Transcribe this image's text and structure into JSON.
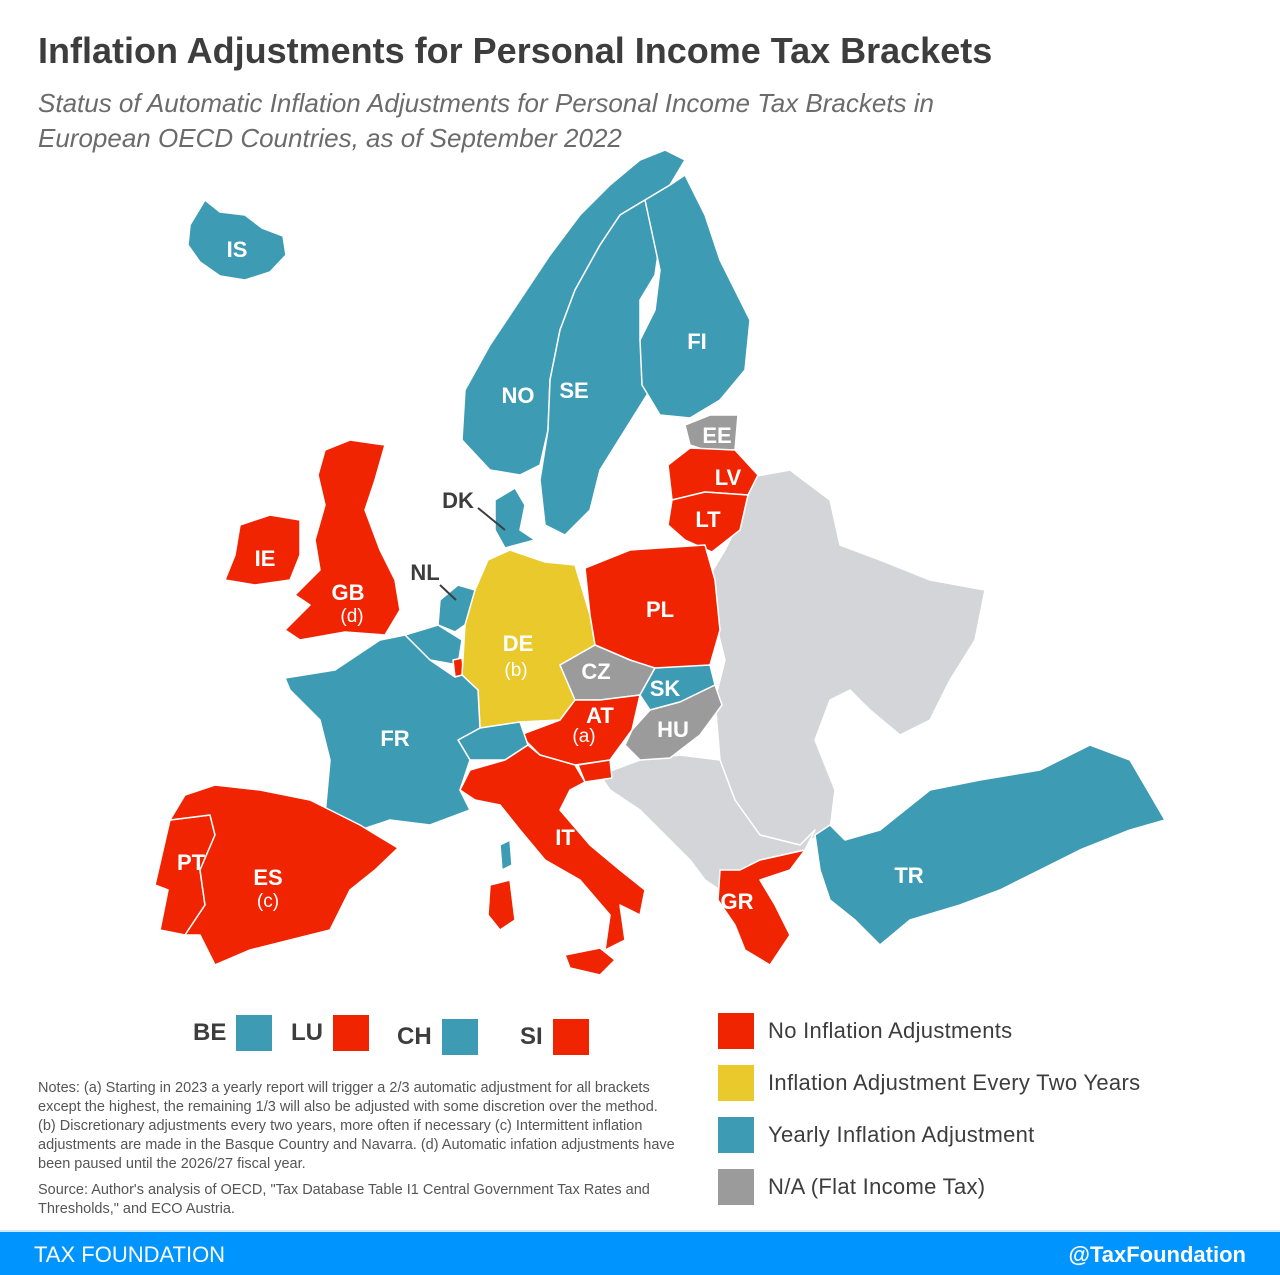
{
  "title": "Inflation Adjustments for Personal Income Tax Brackets",
  "subtitle": "Status of Automatic Inflation Adjustments for Personal Income Tax Brackets in European OECD Countries, as of September 2022",
  "colors": {
    "none": "#f02401",
    "two_years": "#e9c92c",
    "yearly": "#3e9bb4",
    "flat": "#9b9b9b",
    "non_oecd": "#d4d5d8"
  },
  "legend": [
    {
      "key": "none",
      "label": "No Inflation Adjustments"
    },
    {
      "key": "two_years",
      "label": "Inflation Adjustment Every Two Years"
    },
    {
      "key": "yearly",
      "label": "Yearly Inflation Adjustment"
    },
    {
      "key": "flat",
      "label": "N/A (Flat Income Tax)"
    }
  ],
  "countries": {
    "IS": {
      "code": "IS",
      "status": "yearly"
    },
    "NO": {
      "code": "NO",
      "status": "yearly"
    },
    "SE": {
      "code": "SE",
      "status": "yearly"
    },
    "FI": {
      "code": "FI",
      "status": "yearly"
    },
    "EE": {
      "code": "EE",
      "status": "flat"
    },
    "LV": {
      "code": "LV",
      "status": "none"
    },
    "LT": {
      "code": "LT",
      "status": "none"
    },
    "DK": {
      "code": "DK",
      "status": "yearly"
    },
    "GB": {
      "code": "GB",
      "status": "none",
      "note": "(d)"
    },
    "IE": {
      "code": "IE",
      "status": "none"
    },
    "NL": {
      "code": "NL",
      "status": "yearly"
    },
    "DE": {
      "code": "DE",
      "status": "two_years",
      "note": "(b)"
    },
    "PL": {
      "code": "PL",
      "status": "none"
    },
    "CZ": {
      "code": "CZ",
      "status": "flat"
    },
    "SK": {
      "code": "SK",
      "status": "yearly"
    },
    "AT": {
      "code": "AT",
      "status": "none",
      "note": "(a)"
    },
    "HU": {
      "code": "HU",
      "status": "flat"
    },
    "FR": {
      "code": "FR",
      "status": "yearly"
    },
    "IT": {
      "code": "IT",
      "status": "none"
    },
    "PT": {
      "code": "PT",
      "status": "none"
    },
    "ES": {
      "code": "ES",
      "status": "none",
      "note": "(c)"
    },
    "GR": {
      "code": "GR",
      "status": "none"
    },
    "TR": {
      "code": "TR",
      "status": "yearly"
    },
    "BE": {
      "code": "BE",
      "status": "yearly"
    },
    "LU": {
      "code": "LU",
      "status": "none"
    },
    "CH": {
      "code": "CH",
      "status": "yearly"
    },
    "SI": {
      "code": "SI",
      "status": "none"
    }
  },
  "small_countries": [
    "BE",
    "LU",
    "CH",
    "SI"
  ],
  "notes": "Notes: (a) Starting in 2023 a yearly report will trigger a 2/3 automatic adjustment for all brackets except the highest, the remaining 1/3 will also be adjusted with some discretion over the method. (b) Discretionary adjustments every two years, more often if necessary (c) Intermittent inflation adjustments are made in the Basque Country and Navarra. (d) Automatic infation adjustments have been paused until the 2026/27 fiscal year.",
  "source": "Source: Author's analysis of OECD, \"Tax Database Table I1 Central Government Tax Rates and Thresholds,\" and ECO Austria.",
  "footer": {
    "left": "TAX FOUNDATION",
    "right": "@TaxFoundation"
  }
}
